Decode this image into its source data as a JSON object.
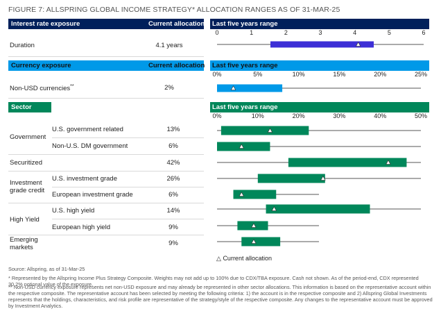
{
  "title": "FIGURE 7: ALLSPRING GLOBAL INCOME STRATEGY* ALLOCATION RANGES AS OF 31-MAR-25",
  "colors": {
    "navy": "#00205b",
    "blue": "#0099e8",
    "violet": "#3d2fd6",
    "teal": "#00875a",
    "whisker": "#555555"
  },
  "sections": {
    "interest": {
      "header": "Interest rate exposure",
      "current_header": "Current allocation",
      "range_header": "Last five years range"
    },
    "currency": {
      "header": "Currency exposure",
      "current_header": "Current allocation",
      "range_header": "Last five years range"
    },
    "sector": {
      "header": "Sector",
      "range_header": "Last five years range"
    }
  },
  "rows": {
    "duration": {
      "label": "Duration",
      "value": "4.1 years"
    },
    "nonusd": {
      "label": "Non-USD currencies",
      "sup": "**",
      "value": "2%"
    },
    "gov_label": "Government",
    "ig_label": "Investment grade credit",
    "hy_label": "High Yield",
    "em_label": "Emerging markets",
    "gov1": {
      "label": "U.S. government related",
      "value": "13%"
    },
    "gov2": {
      "label": "Non-U.S. DM government",
      "value": "6%"
    },
    "securitized": {
      "label": "Securitized",
      "value": "42%"
    },
    "ig1": {
      "label": "U.S. investment grade",
      "value": "26%"
    },
    "ig2": {
      "label": "European investment grade",
      "value": "6%"
    },
    "hy1": {
      "label": "U.S. high yield",
      "value": "14%"
    },
    "hy2": {
      "label": "European high yield",
      "value": "9%"
    },
    "em": {
      "value": "9%"
    }
  },
  "legend": {
    "symbol": "△",
    "label": "Current allocation"
  },
  "footnotes": {
    "source": "Source: Allspring, as of 31-Mar-25",
    "n1": "* Represented by the Allspring Income Plus Strategy Composite. Weights may not add up to 100% due to CDX/TBA exposure. Cash not shown. As of the period-end, CDX represented 30.2% notional value of the exposure.",
    "n2": "** Non-USD currency exposure represents net non-USD exposure and may already be represented in other sector allocations. This information is based on the representative account within the respective composite. The representative account has been selected by meeting the following criteria: 1) the account is in the respective composite and 2) Allspring Global Investments represents that the holdings, characteristics, and risk profile are representative of the strategy/style of the respective composite. Any changes to the representative account must be approved by Investment Analytics."
  },
  "chart_data": [
    {
      "type": "bar",
      "title": "Interest rate exposure",
      "xlabel": "",
      "ylabel": "",
      "ticks": [
        "0",
        "1",
        "2",
        "3",
        "4",
        "5",
        "6"
      ],
      "xlim": [
        0,
        6
      ],
      "rows": [
        {
          "name": "Duration",
          "min": 0,
          "max": 6,
          "box_low": 1.55,
          "box_high": 4.55,
          "current": 4.1
        }
      ]
    },
    {
      "type": "bar",
      "title": "Currency exposure",
      "xlabel": "",
      "ylabel": "",
      "ticks": [
        "0%",
        "5%",
        "10%",
        "15%",
        "20%",
        "25%"
      ],
      "xlim": [
        0,
        25
      ],
      "rows": [
        {
          "name": "Non-USD currencies",
          "min": 0,
          "max": 25,
          "box_low": 0,
          "box_high": 8,
          "current": 2
        }
      ]
    },
    {
      "type": "bar",
      "title": "Sector",
      "xlabel": "",
      "ylabel": "",
      "ticks": [
        "0%",
        "10%",
        "20%",
        "30%",
        "40%",
        "50%"
      ],
      "xlim": [
        0,
        50
      ],
      "rows": [
        {
          "name": "U.S. government related",
          "min": 0,
          "max": 50,
          "box_low": 1,
          "box_high": 22.5,
          "current": 13
        },
        {
          "name": "Non-U.S. DM government",
          "min": 0,
          "max": 50,
          "box_low": 0,
          "box_high": 13,
          "current": 6
        },
        {
          "name": "Securitized",
          "min": 0,
          "max": 50,
          "box_low": 17.5,
          "box_high": 46.5,
          "current": 42
        },
        {
          "name": "U.S. investment grade",
          "min": 0,
          "max": 50,
          "box_low": 10,
          "box_high": 26.5,
          "current": 26
        },
        {
          "name": "European investment grade",
          "min": 4,
          "max": 25,
          "box_low": 4,
          "box_high": 14.5,
          "current": 6
        },
        {
          "name": "U.S. high yield",
          "min": 0,
          "max": 50,
          "box_low": 12,
          "box_high": 37.5,
          "current": 14
        },
        {
          "name": "European high yield",
          "min": 0,
          "max": 25,
          "box_low": 5,
          "box_high": 12.5,
          "current": 9
        },
        {
          "name": "Emerging markets",
          "min": 0,
          "max": 25,
          "box_low": 6,
          "box_high": 15.5,
          "current": 9
        }
      ]
    }
  ]
}
